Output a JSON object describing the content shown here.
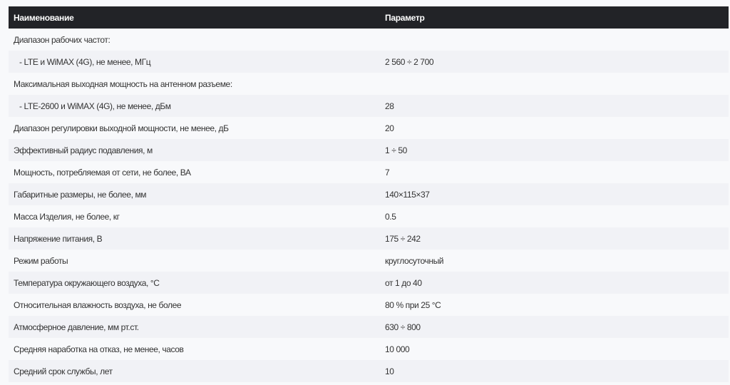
{
  "table": {
    "headers": [
      "Наименование",
      "Параметр"
    ],
    "rows": [
      {
        "name": "Диапазон рабочих частот:",
        "value": ""
      },
      {
        "name": "- LTE и WiMAX (4G), не менее, МГц",
        "value": "2 560 ÷ 2 700"
      },
      {
        "name": "Максимальная выходная мощность на антенном разъеме:",
        "value": ""
      },
      {
        "name": "- LTE-2600 и WiMAX (4G), не менее, дБм",
        "value": "28"
      },
      {
        "name": "Диапазон регулировки выходной мощности, не менее, дБ",
        "value": "20"
      },
      {
        "name": "Эффективный радиус подавления, м",
        "value": "1 ÷ 50"
      },
      {
        "name": "Мощность, потребляемая от сети, не более, ВА",
        "value": "7"
      },
      {
        "name": "Габаритные размеры, не более, мм",
        "value": "140×115×37"
      },
      {
        "name": "Масса Изделия, не более, кг",
        "value": "0.5"
      },
      {
        "name": "Напряжение питания, В",
        "value": "175 ÷ 242"
      },
      {
        "name": "Режим работы",
        "value": "круглосуточный"
      },
      {
        "name": "Температура окружающего воздуха, °С",
        "value": "от 1 до 40"
      },
      {
        "name": "Относительная влажность воздуха, не более",
        "value": "80 % при 25 °С"
      },
      {
        "name": "Атмосферное давление, мм рт.ст.",
        "value": "630 ÷ 800"
      },
      {
        "name": "Средняя наработка на отказ, не менее, часов",
        "value": "10 000"
      },
      {
        "name": "Средний срок службы, лет",
        "value": "10"
      }
    ]
  }
}
